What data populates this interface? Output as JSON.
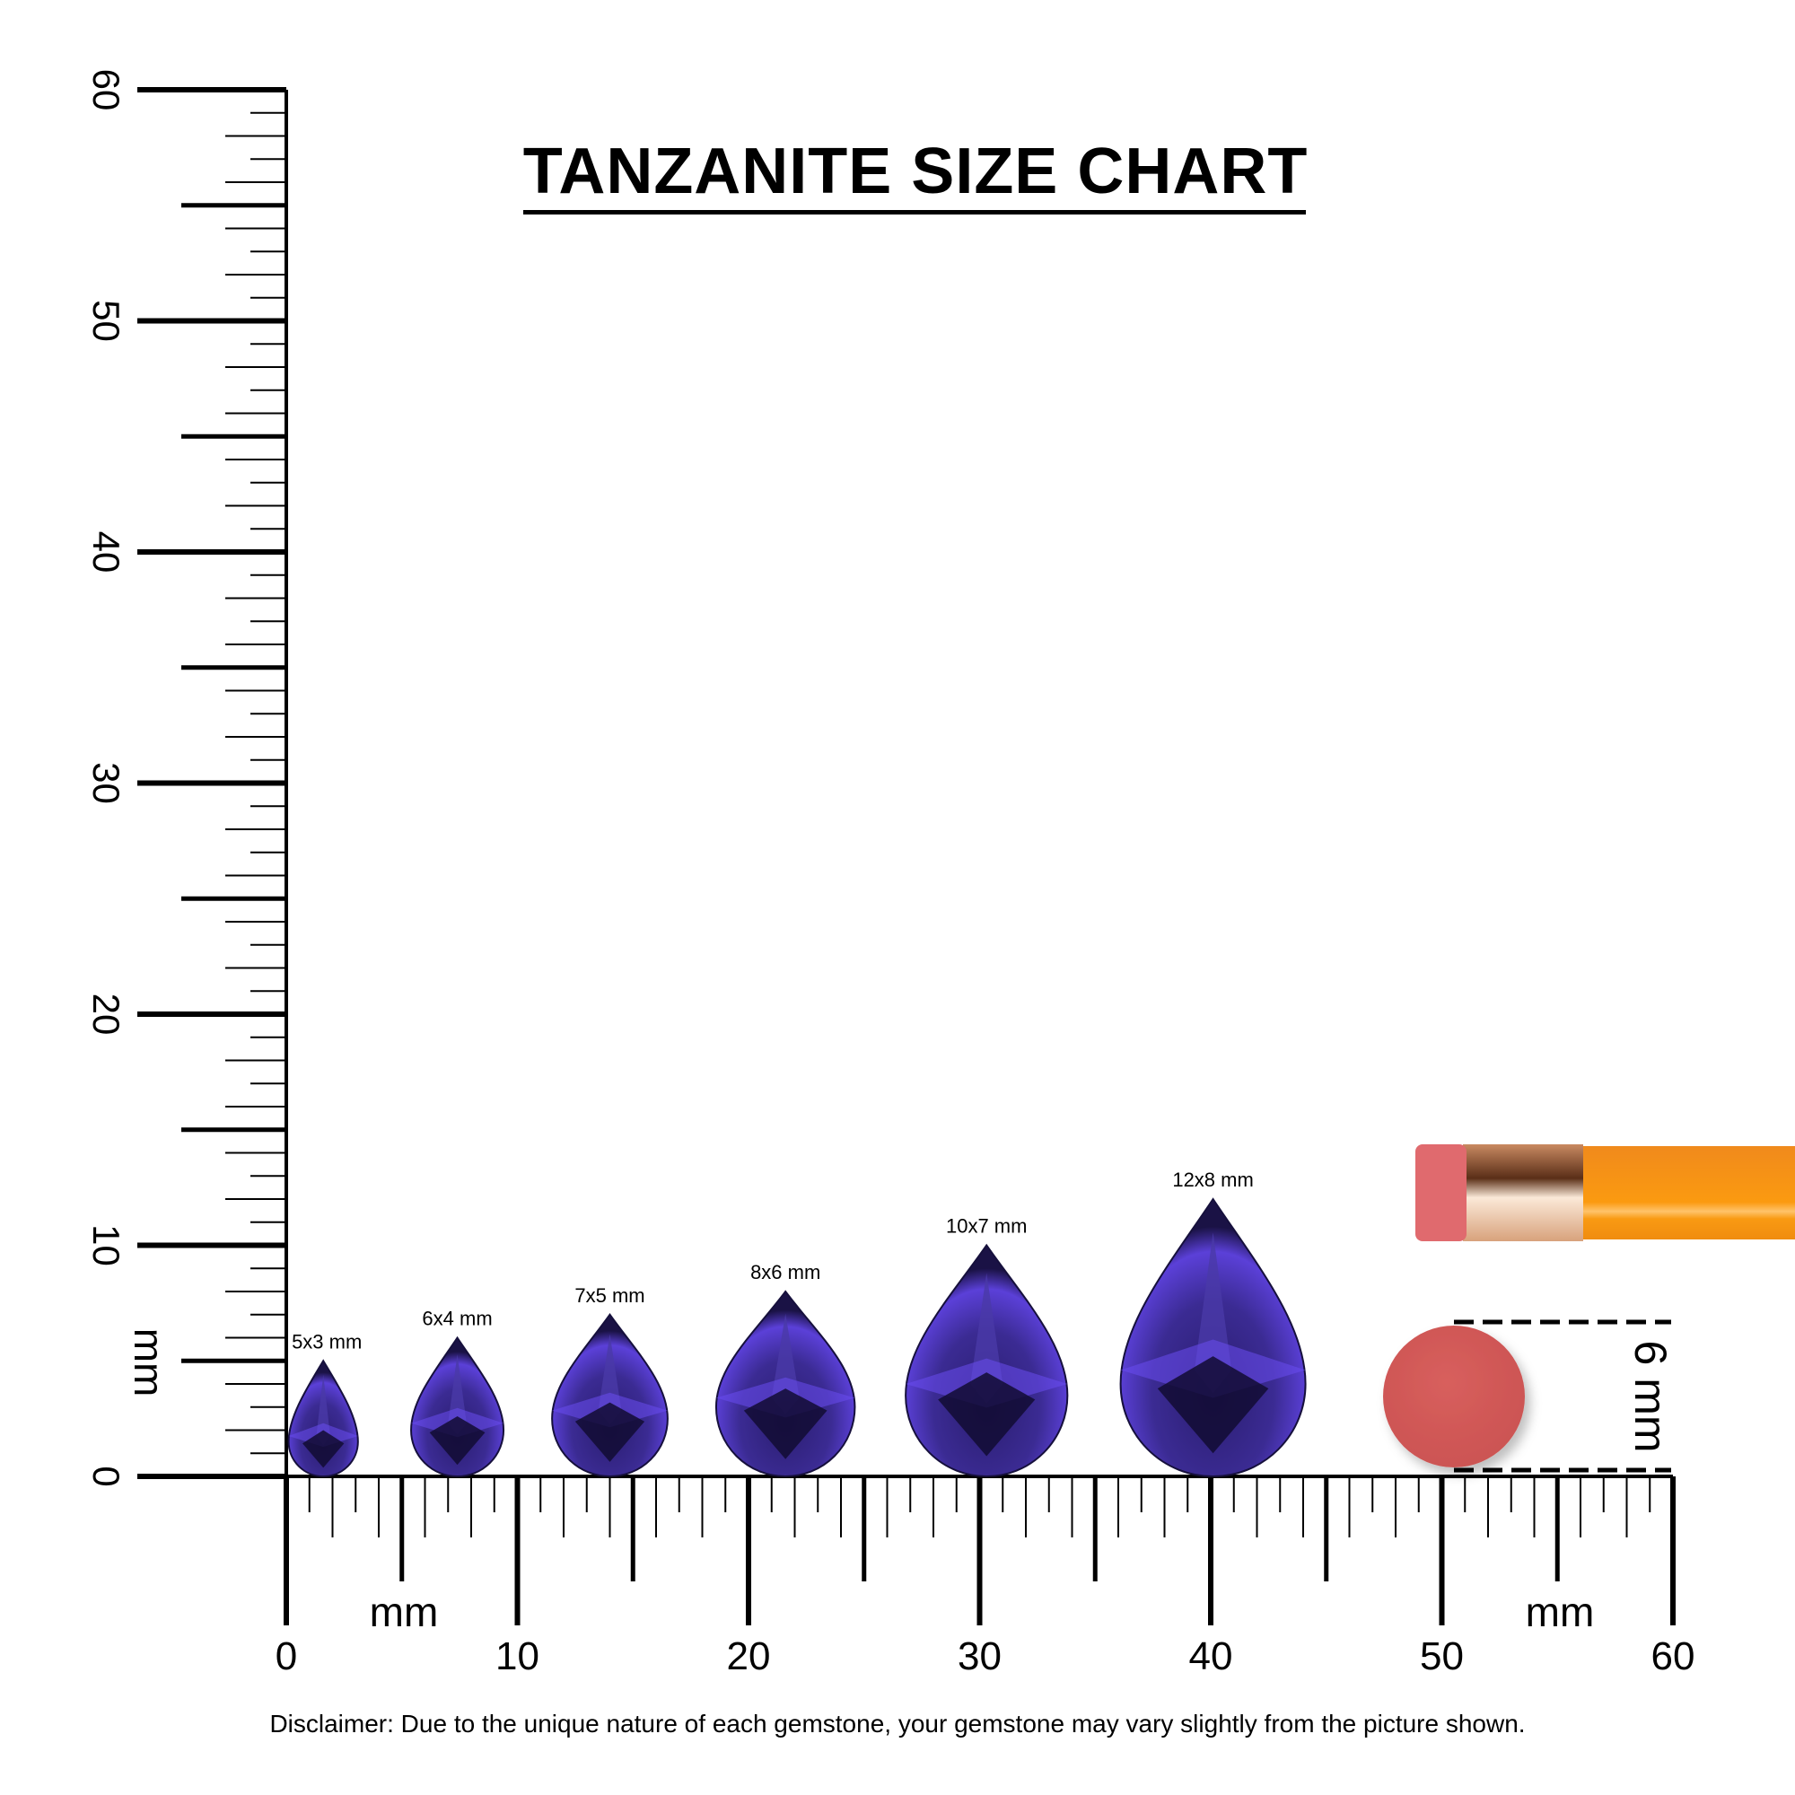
{
  "title": "TANZANITE SIZE CHART",
  "disclaimer": "Disclaimer: Due to the unique nature of each gemstone, your gemstone may vary slightly from the picture shown.",
  "rulers": {
    "unit": "mm",
    "range": [
      0,
      60
    ],
    "vertical_labels": [
      "0",
      "10",
      "20",
      "30",
      "40",
      "50",
      "60"
    ],
    "horizontal_labels": [
      "0",
      "10",
      "20",
      "30",
      "40",
      "50",
      "60"
    ],
    "vertical_unit_label": "mm",
    "horizontal_unit_labels": [
      "mm",
      "mm"
    ]
  },
  "gems": [
    {
      "label": "5x3 mm",
      "length_mm": 5,
      "width_mm": 3,
      "position_mm": 1.6
    },
    {
      "label": "6x4 mm",
      "length_mm": 6,
      "width_mm": 4,
      "position_mm": 7.4
    },
    {
      "label": "7x5 mm",
      "length_mm": 7,
      "width_mm": 5,
      "position_mm": 14.0
    },
    {
      "label": "8x6 mm",
      "length_mm": 8,
      "width_mm": 6,
      "position_mm": 21.6
    },
    {
      "label": "10x7 mm",
      "length_mm": 10,
      "width_mm": 7,
      "position_mm": 30.3
    },
    {
      "label": "12x8 mm",
      "length_mm": 12,
      "width_mm": 8,
      "position_mm": 40.1
    }
  ],
  "gem_colors": {
    "dark": "#17113f",
    "mid": "#3a2a8c",
    "light": "#6a4cf0"
  },
  "eraser_reference": {
    "label": "6 mm",
    "diameter_mm": 6,
    "color": "#d65a58"
  },
  "pencil_colors": {
    "eraser": "#e06a6e",
    "ferrule": "#d9a47a",
    "body": "#f7930f"
  }
}
